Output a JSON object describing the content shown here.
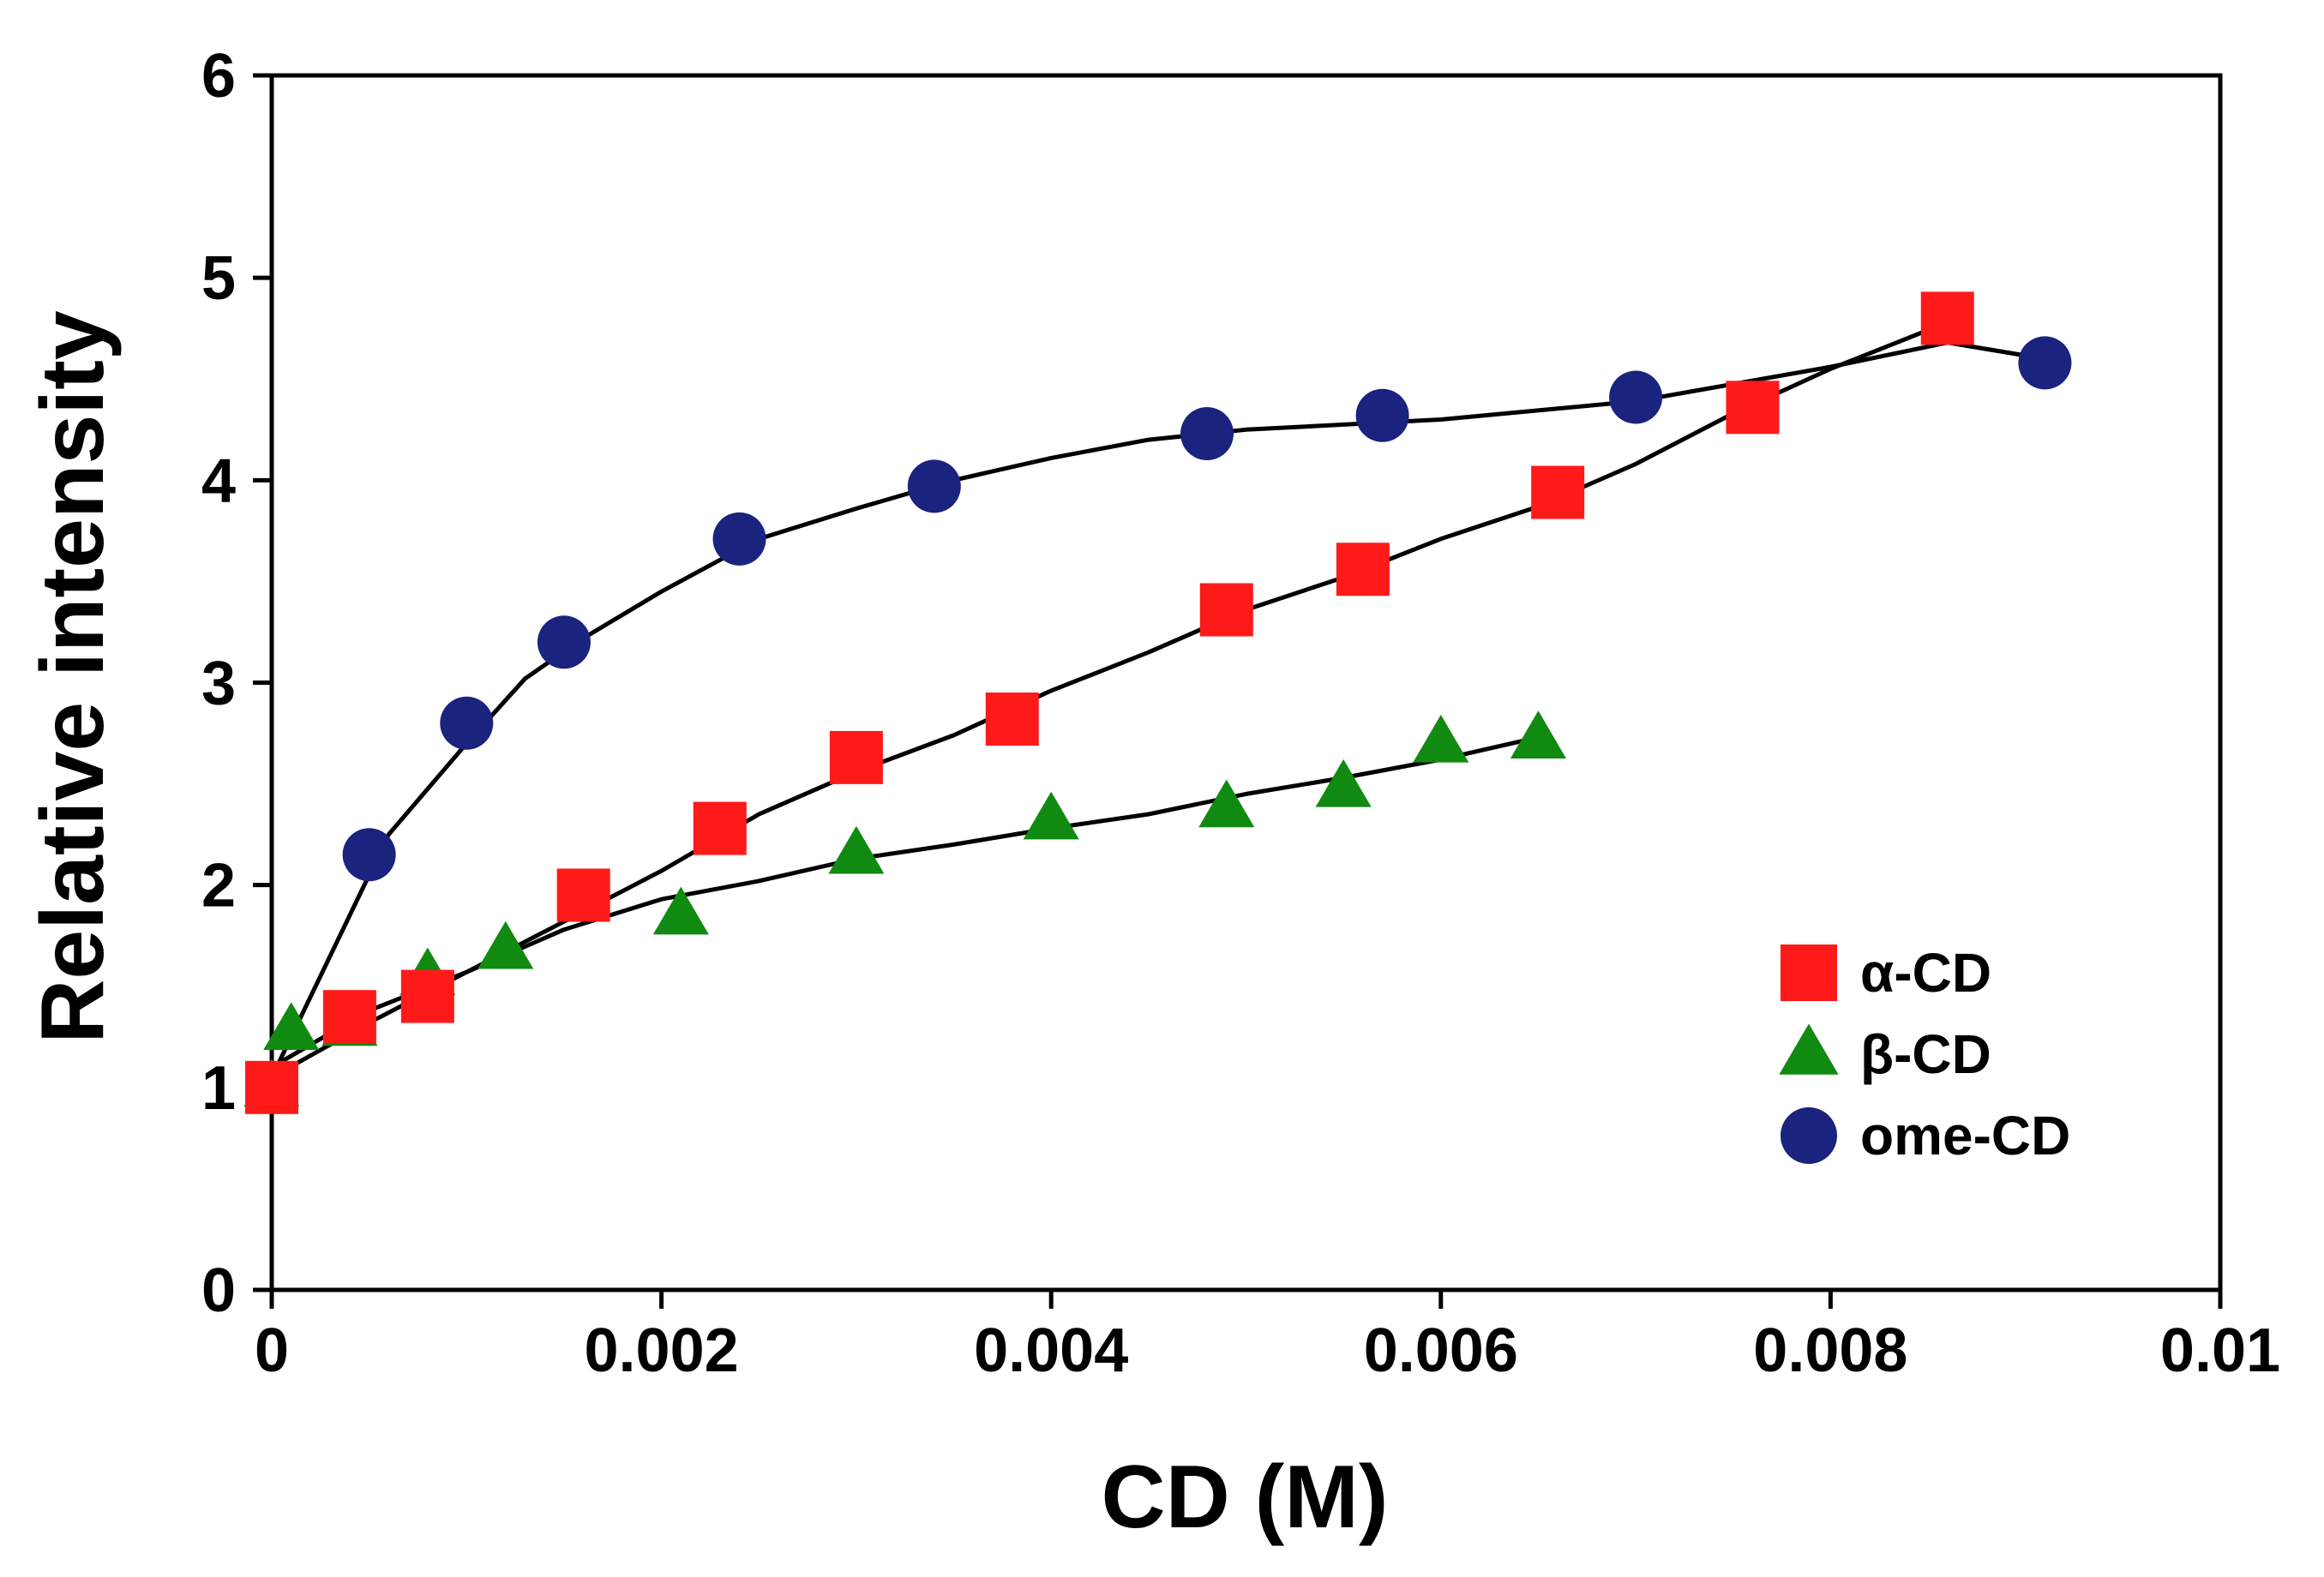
{
  "chart_data": {
    "type": "scatter",
    "title": "",
    "xlabel": "CD (M)",
    "ylabel": "Relative intensity",
    "xlim": [
      0,
      0.01
    ],
    "ylim": [
      0,
      6
    ],
    "x_ticks": [
      0,
      0.002,
      0.004,
      0.006,
      0.008,
      0.01
    ],
    "x_tick_labels": [
      "0",
      "0.002",
      "0.004",
      "0.006",
      "0.008",
      "0.01"
    ],
    "y_ticks": [
      0,
      1,
      2,
      3,
      4,
      5,
      6
    ],
    "y_tick_labels": [
      "0",
      "1",
      "2",
      "3",
      "4",
      "5",
      "6"
    ],
    "grid": false,
    "legend_position": "bottom-right",
    "series": [
      {
        "name": "α-CD",
        "marker": "square",
        "color": "#FF1A1A",
        "x": [
          0,
          0.0004,
          0.0008,
          0.0016,
          0.0023,
          0.003,
          0.0038,
          0.0049,
          0.0056,
          0.0066,
          0.0076,
          0.0086
        ],
        "y": [
          1.0,
          1.35,
          1.45,
          1.95,
          2.28,
          2.63,
          2.82,
          3.36,
          3.56,
          3.94,
          4.36,
          4.8
        ],
        "fit_x": [
          0,
          0.0005,
          0.001,
          0.0015,
          0.002,
          0.0025,
          0.003,
          0.0035,
          0.004,
          0.0045,
          0.005,
          0.0055,
          0.006,
          0.0065,
          0.007,
          0.0075,
          0.008,
          0.0086
        ],
        "fit_y": [
          1.05,
          1.32,
          1.57,
          1.82,
          2.07,
          2.35,
          2.56,
          2.74,
          2.96,
          3.15,
          3.36,
          3.52,
          3.71,
          3.87,
          4.08,
          4.33,
          4.55,
          4.78
        ]
      },
      {
        "name": "β-CD",
        "marker": "triangle",
        "color": "#118A11",
        "x": [
          0,
          0.0001,
          0.0004,
          0.0008,
          0.0012,
          0.0021,
          0.003,
          0.004,
          0.0049,
          0.0055,
          0.006,
          0.0065
        ],
        "y": [
          1.0,
          1.28,
          1.3,
          1.55,
          1.68,
          1.85,
          2.15,
          2.32,
          2.38,
          2.48,
          2.7,
          2.72
        ],
        "fit_x": [
          0,
          0.0005,
          0.001,
          0.0015,
          0.002,
          0.0025,
          0.003,
          0.0035,
          0.004,
          0.0045,
          0.005,
          0.0055,
          0.006,
          0.0065
        ],
        "fit_y": [
          1.1,
          1.38,
          1.57,
          1.78,
          1.93,
          2.02,
          2.13,
          2.2,
          2.28,
          2.35,
          2.45,
          2.53,
          2.62,
          2.73
        ]
      },
      {
        "name": "ome-CD",
        "marker": "circle",
        "color": "#1A237E",
        "x": [
          0.0005,
          0.001,
          0.0015,
          0.0024,
          0.0034,
          0.0048,
          0.0057,
          0.007,
          0.0091
        ],
        "y": [
          2.15,
          2.8,
          3.2,
          3.71,
          3.97,
          4.23,
          4.32,
          4.41,
          4.58
        ],
        "fit_x": [
          0,
          0.0003,
          0.0006,
          0.001,
          0.0013,
          0.0016,
          0.002,
          0.0025,
          0.003,
          0.0035,
          0.004,
          0.0045,
          0.005,
          0.006,
          0.007,
          0.008,
          0.0086,
          0.0091
        ],
        "fit_y": [
          1.05,
          1.65,
          2.25,
          2.7,
          3.02,
          3.22,
          3.45,
          3.71,
          3.86,
          4.0,
          4.11,
          4.2,
          4.25,
          4.3,
          4.39,
          4.56,
          4.68,
          4.6
        ]
      }
    ]
  }
}
